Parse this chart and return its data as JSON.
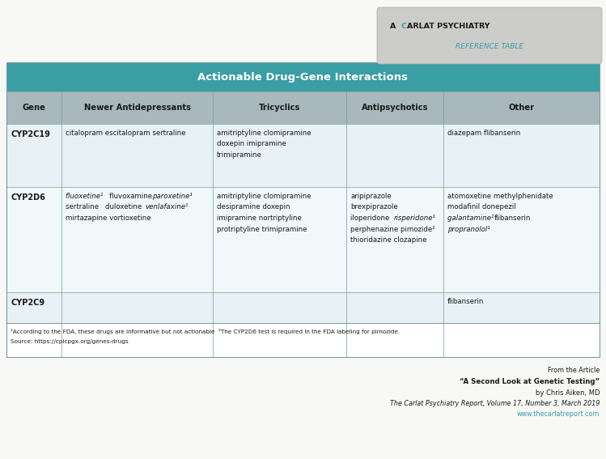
{
  "title": "Actionable Drug-Gene Interactions",
  "title_bg": "#3a9ea5",
  "title_color": "#ffffff",
  "header_bg": "#a8b8bc",
  "header_color": "#1a1a1a",
  "row_bg_light": "#e8f2f4",
  "row_bg_white": "#f0f8f9",
  "border_color": "#7a9a9e",
  "fig_bg": "#f8f8f6",
  "col_headers": [
    "Gene",
    "Newer Antidepressants",
    "Tricyclics",
    "Antipsychotics",
    "Other"
  ],
  "rows": [
    {
      "gene": "CYP2C19",
      "cells": [
        "citalopram escitalopram sertraline",
        "amitriptyline clomipramine\ndoxepin imipramine\ntrimipramine",
        "",
        "diazepam flibanserin"
      ]
    },
    {
      "gene": "CYP2D6",
      "cells": [
        "fluoxetine¹ fluvoxamine paroxetine¹\nsertraline duloxetine venlafaxine¹\nmirtazapine vortioxetine",
        "amitriptyline clomipramine\ndesipramine doxepin\nimipramine nortriptyline\nprotriptyline trimipramine",
        "aripiprazole\nbrexpiprazole\niloperidone risperidone¹\nperphenazine pimozide²\nthioridazine clozapine",
        "atomoxetine methylphenidate\nmodafinil donepezil\ngalantamine¹ flibanserin\npropranolol¹"
      ]
    },
    {
      "gene": "CYP2C9",
      "cells": [
        "",
        "",
        "",
        "flibanserin"
      ]
    }
  ],
  "italic_newer": [
    "fluoxetine¹",
    "paroxetine¹",
    "venlafaxine¹"
  ],
  "italic_antipsych": [
    "risperidone¹"
  ],
  "italic_other": [
    "galantamine¹",
    "propranolol¹"
  ],
  "footnote1": "¹According to the FDA, these drugs are informative but not actionable  ²The CYP2D6 test is required in the FDA labeling for pimozide",
  "footnote2": "Source: https://cpicpgx.org/genes-drugs",
  "footer1": "From the Article",
  "footer2": "“A Second Look at Genetic Testing”",
  "footer3": "by Chris Aiken, MD",
  "footer4": "The Carlat Psychiatry Report, Volume 17, Number 3, March 2019",
  "footer5": "www.thecarlatreport.com",
  "footer_url_color": "#3a9ea5",
  "logo_bg": "#ccccca",
  "logo_line1_black": "A ",
  "logo_line1_teal": "C",
  "logo_line1_rest": "ARLAT PSYCHIATRY",
  "logo_line2": "REFERENCE TABLE",
  "logo_color_black": "#1a1a1a",
  "logo_color_teal": "#3a9ea5"
}
